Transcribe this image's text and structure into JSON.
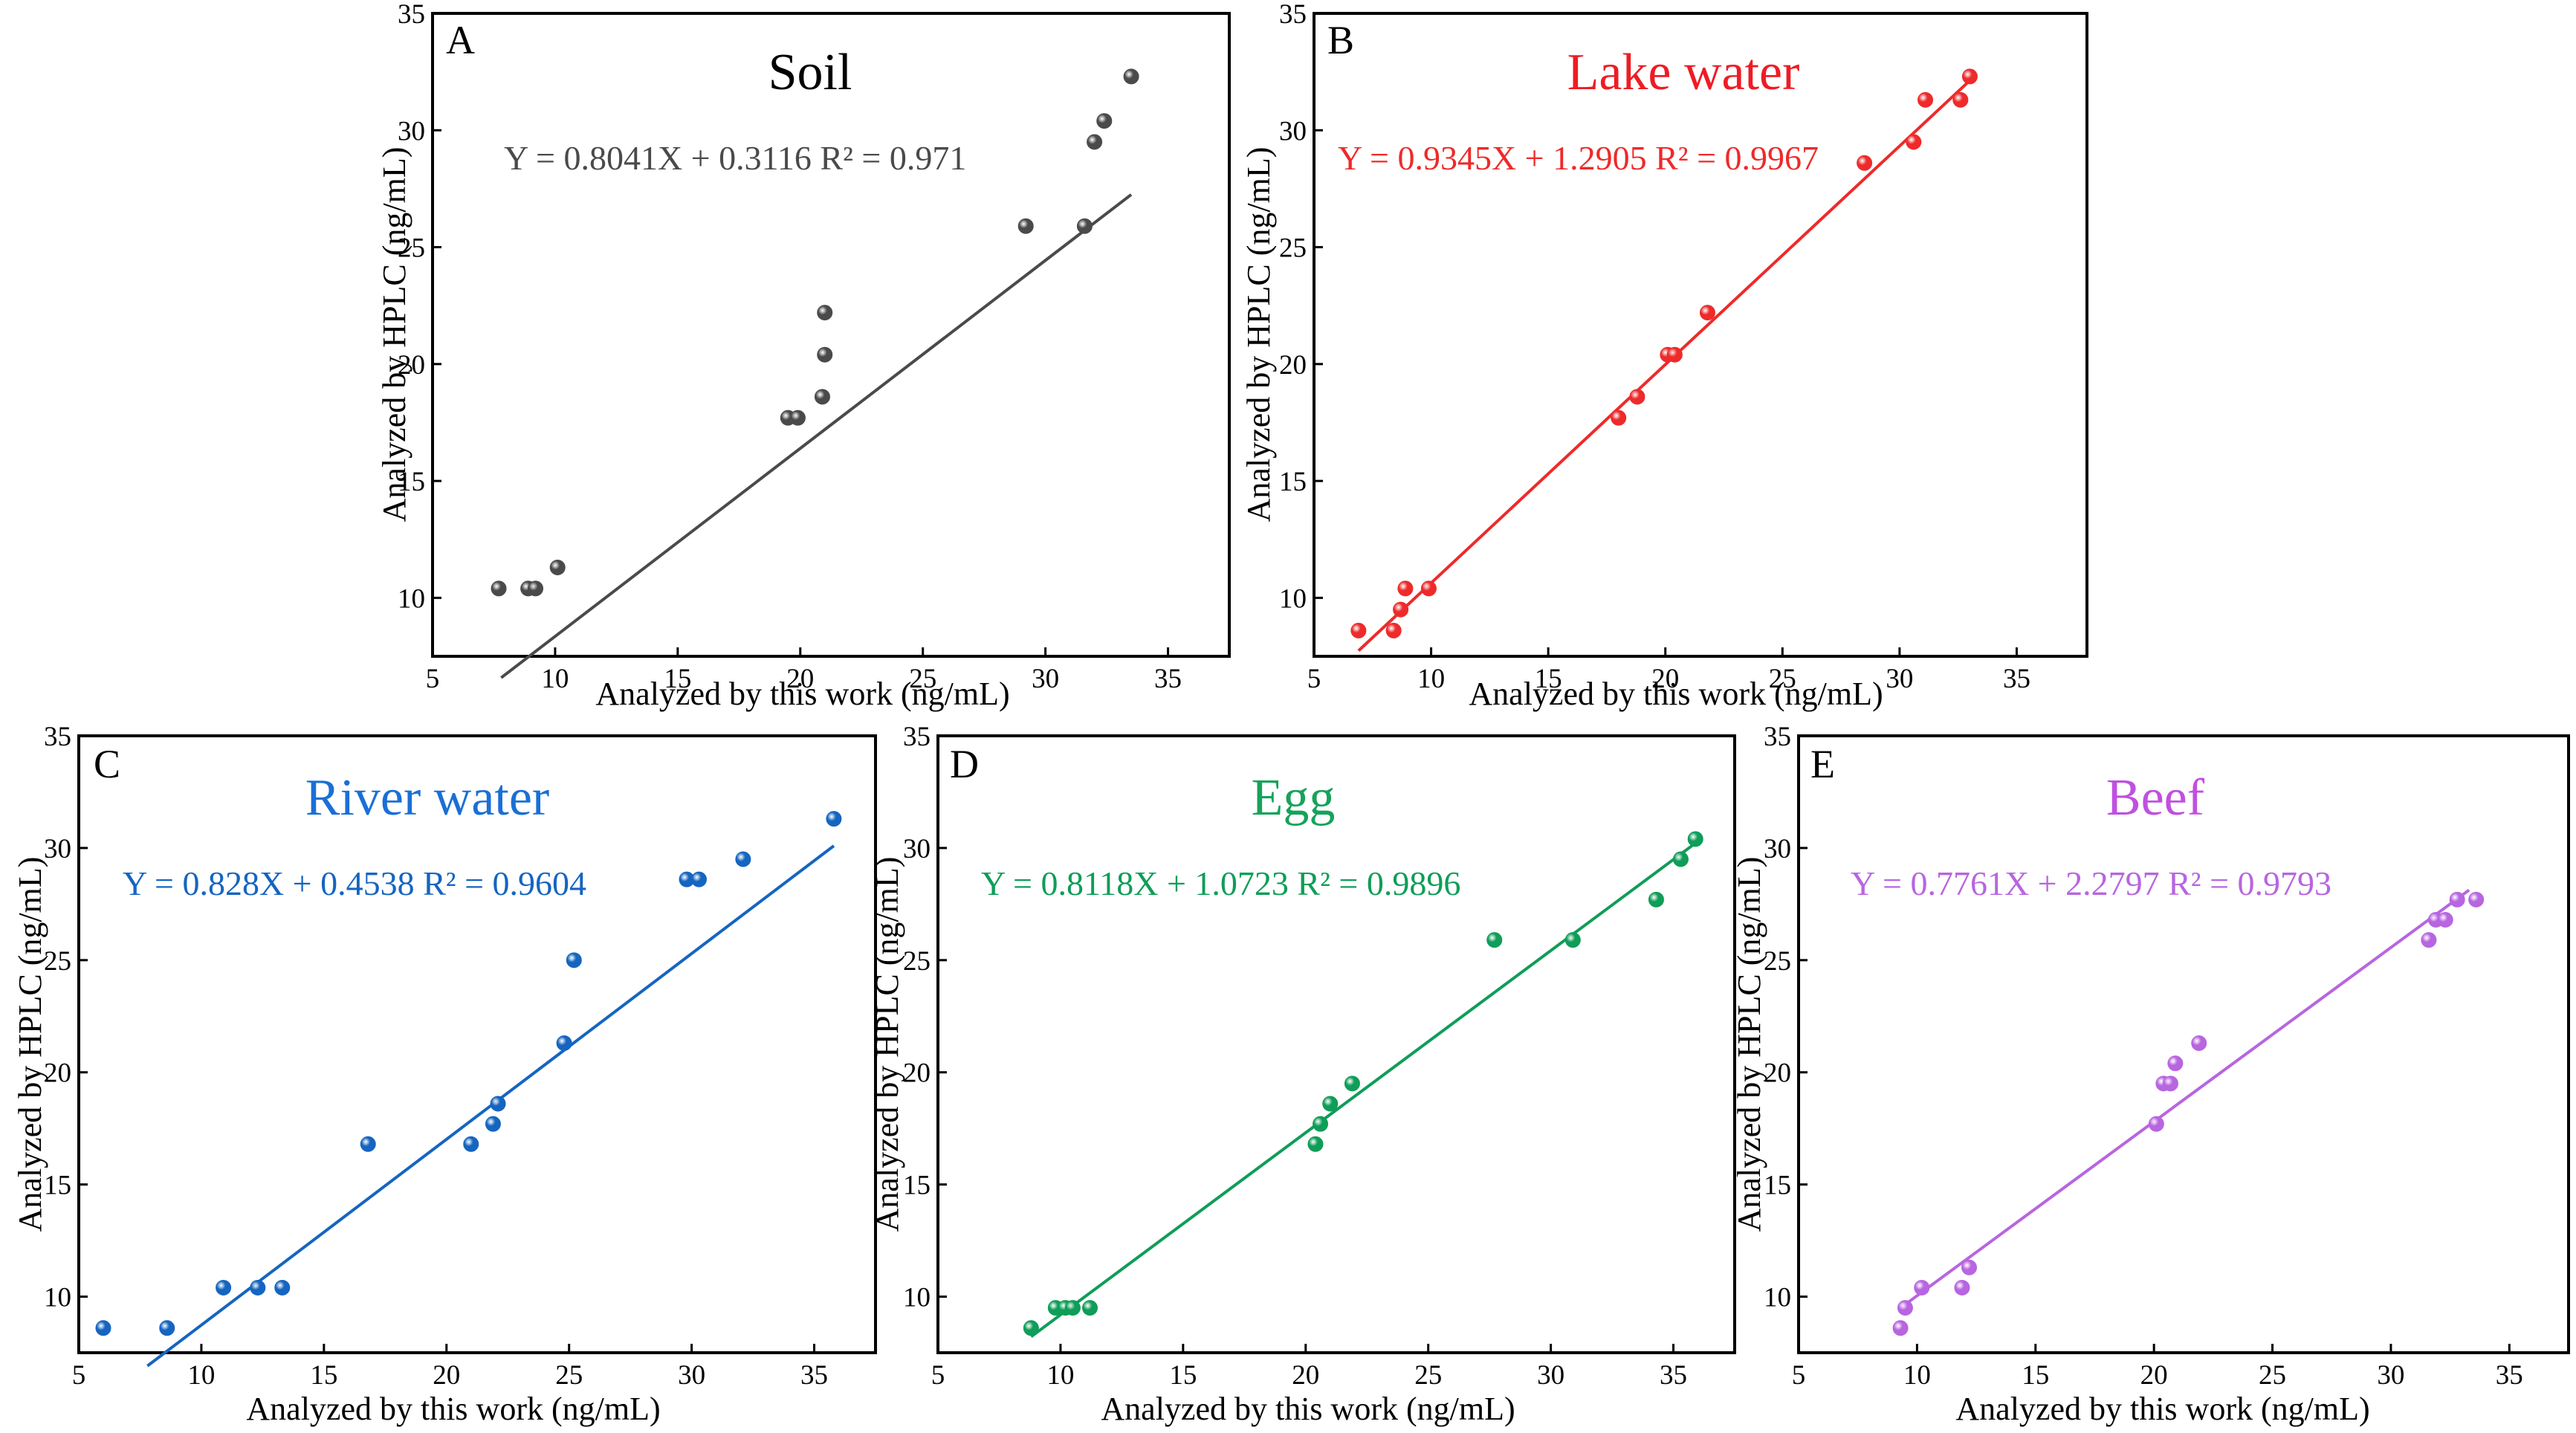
{
  "chart_data": [
    {
      "panel": "A",
      "type": "scatter",
      "title": "Soil",
      "title_color": "#000000",
      "color": "#4a4a4a",
      "equation": "Y = 0.8041X + 0.3116 R² = 0.971",
      "xlabel": "Analyzed by this work (ng/mL)",
      "ylabel": "Analyzed by HPLC (ng/mL)",
      "xlim": [
        5,
        37.5
      ],
      "ylim": [
        7.5,
        35
      ],
      "xticks": [
        5,
        10,
        15,
        20,
        25,
        30,
        35
      ],
      "yticks": [
        10,
        15,
        20,
        25,
        30,
        35
      ],
      "fit": {
        "slope": 0.8041,
        "intercept": 0.3116,
        "x_range": [
          7.8,
          33.5
        ]
      },
      "points": [
        {
          "x": 7.7,
          "y": 10.4
        },
        {
          "x": 8.9,
          "y": 10.4
        },
        {
          "x": 9.2,
          "y": 10.4
        },
        {
          "x": 10.1,
          "y": 11.3
        },
        {
          "x": 19.5,
          "y": 17.7
        },
        {
          "x": 19.9,
          "y": 17.7
        },
        {
          "x": 20.9,
          "y": 18.6
        },
        {
          "x": 21.0,
          "y": 20.4
        },
        {
          "x": 21.0,
          "y": 22.2
        },
        {
          "x": 29.2,
          "y": 25.9
        },
        {
          "x": 31.6,
          "y": 25.9
        },
        {
          "x": 32.0,
          "y": 29.5
        },
        {
          "x": 32.4,
          "y": 30.4
        },
        {
          "x": 33.5,
          "y": 32.3
        }
      ]
    },
    {
      "panel": "B",
      "type": "scatter",
      "title": "Lake water",
      "title_color": "#ee1c24",
      "color": "#ee2a2a",
      "equation": "Y = 0.9345X + 1.2905 R² = 0.9967",
      "xlabel": "Analyzed by this work (ng/mL)",
      "ylabel": "Analyzed by HPLC (ng/mL)",
      "xlim": [
        5,
        38
      ],
      "ylim": [
        7.5,
        35
      ],
      "xticks": [
        5,
        10,
        15,
        20,
        25,
        30,
        35
      ],
      "yticks": [
        10,
        15,
        20,
        25,
        30,
        35
      ],
      "fit": {
        "slope": 0.9345,
        "intercept": 1.2905,
        "x_range": [
          6.9,
          33.1
        ]
      },
      "points": [
        {
          "x": 6.9,
          "y": 8.6
        },
        {
          "x": 8.4,
          "y": 8.6
        },
        {
          "x": 8.7,
          "y": 9.5
        },
        {
          "x": 8.9,
          "y": 10.4
        },
        {
          "x": 9.9,
          "y": 10.4
        },
        {
          "x": 18.0,
          "y": 17.7
        },
        {
          "x": 18.8,
          "y": 18.6
        },
        {
          "x": 20.1,
          "y": 20.4
        },
        {
          "x": 20.4,
          "y": 20.4
        },
        {
          "x": 21.8,
          "y": 22.2
        },
        {
          "x": 28.5,
          "y": 28.6
        },
        {
          "x": 30.6,
          "y": 29.5
        },
        {
          "x": 31.1,
          "y": 31.3
        },
        {
          "x": 32.6,
          "y": 31.3
        },
        {
          "x": 33.0,
          "y": 32.3
        }
      ]
    },
    {
      "panel": "C",
      "type": "scatter",
      "title": "River water",
      "title_color": "#1a6fd6",
      "color": "#1565c0",
      "equation": "Y = 0.828X + 0.4538 R² = 0.9604",
      "xlabel": "Analyzed by this work (ng/mL)",
      "ylabel": "Analyzed by HPLC (ng/mL)",
      "xlim": [
        5,
        37.5
      ],
      "ylim": [
        7.5,
        35
      ],
      "xticks": [
        5,
        10,
        15,
        20,
        25,
        30,
        35
      ],
      "yticks": [
        10,
        15,
        20,
        25,
        30,
        35
      ],
      "fit": {
        "slope": 0.828,
        "intercept": 0.4538,
        "x_range": [
          7.8,
          35.8
        ]
      },
      "points": [
        {
          "x": 6.0,
          "y": 8.6
        },
        {
          "x": 8.6,
          "y": 8.6
        },
        {
          "x": 10.9,
          "y": 10.4
        },
        {
          "x": 12.3,
          "y": 10.4
        },
        {
          "x": 13.3,
          "y": 10.4
        },
        {
          "x": 16.8,
          "y": 16.8
        },
        {
          "x": 21.0,
          "y": 16.8
        },
        {
          "x": 21.9,
          "y": 17.7
        },
        {
          "x": 22.1,
          "y": 18.6
        },
        {
          "x": 24.8,
          "y": 21.3
        },
        {
          "x": 25.2,
          "y": 25.0
        },
        {
          "x": 29.8,
          "y": 28.6
        },
        {
          "x": 30.3,
          "y": 28.6
        },
        {
          "x": 32.1,
          "y": 29.5
        },
        {
          "x": 35.8,
          "y": 31.3
        }
      ]
    },
    {
      "panel": "D",
      "type": "scatter",
      "title": "Egg",
      "title_color": "#16a35a",
      "color": "#0f9d58",
      "equation": "Y = 0.8118X + 1.0723 R² = 0.9896",
      "xlabel": "Analyzed by this work (ng/mL)",
      "ylabel": "Analyzed by HPLC (ng/mL)",
      "xlim": [
        5,
        37.5
      ],
      "ylim": [
        7.5,
        35
      ],
      "xticks": [
        5,
        10,
        15,
        20,
        25,
        30,
        35
      ],
      "yticks": [
        10,
        15,
        20,
        25,
        30,
        35
      ],
      "fit": {
        "slope": 0.8118,
        "intercept": 1.0723,
        "x_range": [
          8.8,
          36.0
        ]
      },
      "points": [
        {
          "x": 8.8,
          "y": 8.6
        },
        {
          "x": 9.8,
          "y": 9.5
        },
        {
          "x": 10.2,
          "y": 9.5
        },
        {
          "x": 10.5,
          "y": 9.5
        },
        {
          "x": 11.2,
          "y": 9.5
        },
        {
          "x": 20.4,
          "y": 16.8
        },
        {
          "x": 20.6,
          "y": 17.7
        },
        {
          "x": 21.0,
          "y": 18.6
        },
        {
          "x": 21.9,
          "y": 19.5
        },
        {
          "x": 27.7,
          "y": 25.9
        },
        {
          "x": 30.9,
          "y": 25.9
        },
        {
          "x": 34.3,
          "y": 27.7
        },
        {
          "x": 35.3,
          "y": 29.5
        },
        {
          "x": 35.9,
          "y": 30.4
        }
      ]
    },
    {
      "panel": "E",
      "type": "scatter",
      "title": "Beef",
      "title_color": "#c050e0",
      "color": "#b865e0",
      "equation": "Y = 0.7761X + 2.2797 R² = 0.9793",
      "xlabel": "Analyzed by this work (ng/mL)",
      "ylabel": "Analyzed by HPLC (ng/mL)",
      "xlim": [
        5,
        37.5
      ],
      "ylim": [
        7.5,
        35
      ],
      "xticks": [
        5,
        10,
        15,
        20,
        25,
        30,
        35
      ],
      "yticks": [
        10,
        15,
        20,
        25,
        30,
        35
      ],
      "fit": {
        "slope": 0.7761,
        "intercept": 2.2797,
        "x_range": [
          9.3,
          33.3
        ]
      },
      "points": [
        {
          "x": 9.3,
          "y": 8.6
        },
        {
          "x": 9.5,
          "y": 9.5
        },
        {
          "x": 10.2,
          "y": 10.4
        },
        {
          "x": 11.9,
          "y": 10.4
        },
        {
          "x": 12.2,
          "y": 11.3
        },
        {
          "x": 20.1,
          "y": 17.7
        },
        {
          "x": 20.4,
          "y": 19.5
        },
        {
          "x": 20.7,
          "y": 19.5
        },
        {
          "x": 20.9,
          "y": 20.4
        },
        {
          "x": 21.9,
          "y": 21.3
        },
        {
          "x": 31.6,
          "y": 25.9
        },
        {
          "x": 31.9,
          "y": 26.8
        },
        {
          "x": 32.3,
          "y": 26.8
        },
        {
          "x": 32.8,
          "y": 27.7
        },
        {
          "x": 33.6,
          "y": 27.7
        }
      ]
    }
  ]
}
